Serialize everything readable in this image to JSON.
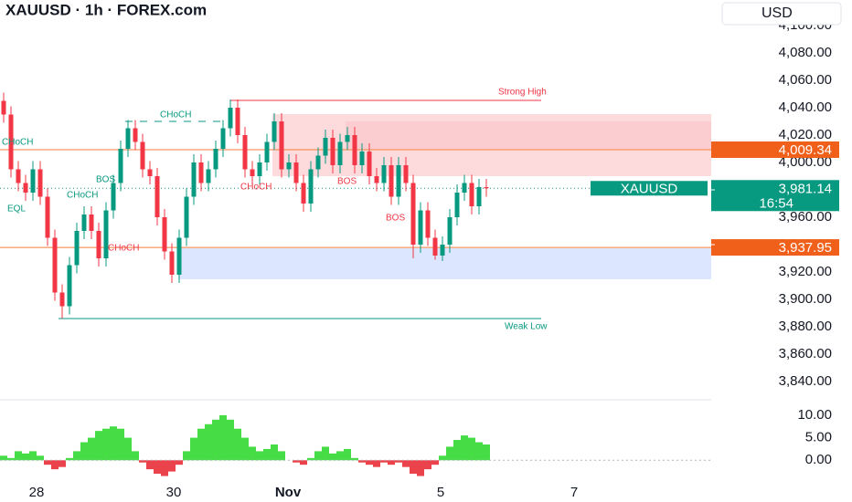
{
  "header": {
    "title": "XAUUSD · 1h · FOREX.com",
    "currency": "USD"
  },
  "chart_data": {
    "type": "candlestick",
    "up_color": "#089981",
    "down_color": "#f23645",
    "open": [
      4045,
      4035,
      3995,
      3985,
      3978,
      3995,
      3975,
      3945,
      3905,
      3895,
      3925,
      3950,
      3962,
      3950,
      3930,
      3965,
      3985,
      4010,
      4025,
      4015,
      3995,
      3990,
      3960,
      3935,
      3918,
      3945,
      3975,
      4000,
      3985,
      3995,
      4010,
      4025,
      4040,
      4020,
      3995,
      3990,
      4000,
      4015,
      4030,
      3995,
      4000,
      3985,
      3970,
      3995,
      4005,
      4018,
      3998,
      4015,
      4020,
      3998,
      4008,
      3990,
      3985,
      3998,
      3975,
      3998,
      3985,
      3940,
      3965,
      3945,
      3932,
      3940,
      3960,
      3978,
      3985,
      3968,
      3982
    ],
    "high": [
      4051,
      4041,
      4001,
      3991,
      4001,
      4001,
      3981,
      3951,
      3911,
      3931,
      3956,
      3968,
      3968,
      3956,
      3971,
      3991,
      4016,
      4031,
      4031,
      4021,
      4001,
      3996,
      3966,
      3941,
      3951,
      3981,
      4006,
      4006,
      4001,
      4016,
      4031,
      4046,
      4046,
      4026,
      4001,
      4006,
      4021,
      4036,
      4036,
      4006,
      4006,
      3991,
      4001,
      4011,
      4024,
      4024,
      4021,
      4026,
      4026,
      4014,
      4014,
      3996,
      4004,
      4004,
      4004,
      4004,
      3991,
      3971,
      3971,
      3951,
      3946,
      3966,
      3984,
      3991,
      3991,
      3988,
      3988
    ],
    "low": [
      4029,
      3989,
      3979,
      3972,
      3972,
      3969,
      3939,
      3899,
      3886,
      3889,
      3919,
      3944,
      3944,
      3924,
      3924,
      3959,
      3979,
      4004,
      4009,
      3989,
      3984,
      3954,
      3929,
      3912,
      3912,
      3939,
      3969,
      3979,
      3979,
      3989,
      4004,
      4019,
      4014,
      3989,
      3984,
      3984,
      3994,
      4009,
      3989,
      3989,
      3979,
      3964,
      3964,
      3989,
      3999,
      3992,
      3992,
      4009,
      3992,
      3992,
      3984,
      3979,
      3979,
      3969,
      3969,
      3979,
      3930,
      3934,
      3939,
      3929,
      3928,
      3934,
      3954,
      3972,
      3962,
      3962,
      3975
    ],
    "close": [
      4035,
      3995,
      3985,
      3978,
      3995,
      3975,
      3945,
      3905,
      3895,
      3925,
      3950,
      3962,
      3950,
      3930,
      3965,
      3985,
      4010,
      4025,
      4015,
      3995,
      3990,
      3960,
      3935,
      3918,
      3945,
      3975,
      4000,
      3985,
      3995,
      4010,
      4025,
      4040,
      4020,
      3995,
      3990,
      4000,
      4015,
      4030,
      3995,
      4000,
      3985,
      3970,
      3995,
      4005,
      4018,
      3998,
      4015,
      4020,
      3998,
      4008,
      3990,
      3985,
      3998,
      3975,
      3998,
      3985,
      3940,
      3965,
      3945,
      3932,
      3940,
      3960,
      3978,
      3985,
      3968,
      3982,
      3981.14
    ],
    "ylim": [
      3832,
      4118
    ],
    "yticks": [
      {
        "value": 4100,
        "label": "4,100.00"
      },
      {
        "value": 4080,
        "label": "4,080.00"
      },
      {
        "value": 4060,
        "label": "4,060.00"
      },
      {
        "value": 4040,
        "label": "4,040.00"
      },
      {
        "value": 4020,
        "label": "4,020.00"
      },
      {
        "value": 4000,
        "label": "4,000.00"
      },
      {
        "value": 3980,
        "label": "3,980.00"
      },
      {
        "value": 3960,
        "label": "3,960.00"
      },
      {
        "value": 3940,
        "label": "3,940.00"
      },
      {
        "value": 3920,
        "label": "3,920.00"
      },
      {
        "value": 3900,
        "label": "3,900.00"
      },
      {
        "value": 3880,
        "label": "3,880.00"
      },
      {
        "value": 3860,
        "label": "3,860.00"
      },
      {
        "value": 3840,
        "label": "3,840.00"
      }
    ],
    "time_labels": [
      "28",
      "30",
      "Nov",
      "5",
      "7"
    ],
    "price_tags": [
      {
        "value": 4009.34,
        "label": "4,009.34"
      },
      {
        "value": 3937.95,
        "label": "3,937.95"
      }
    ],
    "symbol_tag": "XAUUSD",
    "last": {
      "value": 3981.14,
      "label": "3,981.14"
    },
    "countdown": "16:54",
    "annotations": [
      "CHoCH",
      "CHoCH",
      "BOS",
      "CHoCH",
      "EQL",
      "CHoCH",
      "CHoCH",
      "BOS",
      "BOS",
      "Strong High",
      "Weak Low"
    ]
  },
  "oscillator": {
    "type": "bar",
    "pos_color": "#26d626",
    "neg_color": "#e8222b",
    "values": [
      1,
      0.5,
      2,
      1.5,
      2,
      1,
      -1,
      -2,
      -1.5,
      0.5,
      2,
      4,
      5,
      6.5,
      7,
      7.5,
      7,
      5,
      2,
      -0.5,
      -2,
      -3,
      -3.5,
      -2.5,
      -1,
      2,
      5,
      7,
      8,
      9,
      10,
      9,
      7,
      5,
      3,
      2,
      2.5,
      3.5,
      2,
      0,
      -0.5,
      -1,
      0.5,
      2,
      3,
      1.5,
      2,
      2.5,
      0.5,
      -0.5,
      -1,
      -1.5,
      -0.5,
      -1,
      -0.5,
      -1.5,
      -3,
      -3.5,
      -2,
      -1,
      1,
      3,
      4.5,
      5.5,
      5,
      4,
      3.5
    ],
    "ylim": [
      -4,
      12
    ],
    "yticks": [
      {
        "value": 10,
        "label": "10.00"
      },
      {
        "value": 5,
        "label": "5.00"
      },
      {
        "value": 0,
        "label": "0.00"
      }
    ]
  }
}
